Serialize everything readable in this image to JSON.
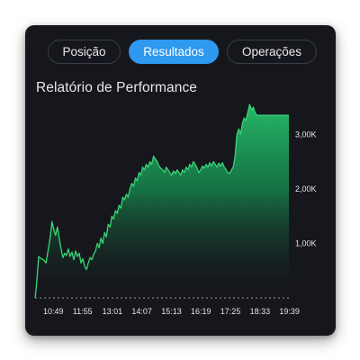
{
  "tabs": [
    {
      "label": "Posição",
      "active": false
    },
    {
      "label": "Resultados",
      "active": true
    },
    {
      "label": "Operações",
      "active": false
    }
  ],
  "title": "Relatório de Performance",
  "colors": {
    "background": "#16171d",
    "accent": "#2f98ef",
    "line": "#38d677",
    "fill": "#1f9e58"
  },
  "chart_data": {
    "type": "area",
    "x_tick_labels": [
      "10:49",
      "11:55",
      "13:01",
      "14:07",
      "15:13",
      "16:19",
      "17:25",
      "18:33",
      "19:39"
    ],
    "y_tick_labels": [
      "1,00K",
      "2,00K",
      "3,00K"
    ],
    "y_ticks": [
      1000,
      2000,
      3000
    ],
    "ylim": [
      0,
      3600
    ],
    "baseline": 0,
    "x_range": [
      0,
      420
    ],
    "points": [
      [
        0,
        0
      ],
      [
        2,
        180
      ],
      [
        6,
        760
      ],
      [
        10,
        720
      ],
      [
        14,
        700
      ],
      [
        18,
        640
      ],
      [
        22,
        900
      ],
      [
        25,
        1120
      ],
      [
        28,
        1400
      ],
      [
        31,
        1250
      ],
      [
        34,
        1150
      ],
      [
        37,
        1300
      ],
      [
        40,
        1080
      ],
      [
        43,
        900
      ],
      [
        46,
        740
      ],
      [
        49,
        820
      ],
      [
        52,
        780
      ],
      [
        55,
        900
      ],
      [
        58,
        760
      ],
      [
        61,
        840
      ],
      [
        64,
        700
      ],
      [
        67,
        860
      ],
      [
        70,
        760
      ],
      [
        73,
        820
      ],
      [
        76,
        640
      ],
      [
        79,
        720
      ],
      [
        82,
        580
      ],
      [
        85,
        520
      ],
      [
        88,
        640
      ],
      [
        91,
        740
      ],
      [
        94,
        700
      ],
      [
        97,
        800
      ],
      [
        100,
        860
      ],
      [
        103,
        1000
      ],
      [
        106,
        920
      ],
      [
        109,
        1100
      ],
      [
        112,
        1000
      ],
      [
        115,
        1200
      ],
      [
        118,
        1120
      ],
      [
        121,
        1350
      ],
      [
        124,
        1300
      ],
      [
        127,
        1500
      ],
      [
        130,
        1450
      ],
      [
        133,
        1600
      ],
      [
        136,
        1550
      ],
      [
        139,
        1700
      ],
      [
        142,
        1650
      ],
      [
        145,
        1850
      ],
      [
        148,
        1800
      ],
      [
        151,
        1900
      ],
      [
        154,
        1850
      ],
      [
        157,
        2000
      ],
      [
        160,
        2100
      ],
      [
        163,
        2050
      ],
      [
        166,
        2200
      ],
      [
        169,
        2150
      ],
      [
        172,
        2300
      ],
      [
        175,
        2250
      ],
      [
        178,
        2400
      ],
      [
        181,
        2350
      ],
      [
        184,
        2450
      ],
      [
        187,
        2400
      ],
      [
        190,
        2500
      ],
      [
        193,
        2450
      ],
      [
        196,
        2600
      ],
      [
        199,
        2550
      ],
      [
        202,
        2500
      ],
      [
        205,
        2420
      ],
      [
        208,
        2380
      ],
      [
        211,
        2350
      ],
      [
        214,
        2300
      ],
      [
        217,
        2400
      ],
      [
        220,
        2350
      ],
      [
        223,
        2300
      ],
      [
        226,
        2250
      ],
      [
        229,
        2330
      ],
      [
        232,
        2280
      ],
      [
        235,
        2350
      ],
      [
        238,
        2300
      ],
      [
        241,
        2250
      ],
      [
        244,
        2350
      ],
      [
        247,
        2300
      ],
      [
        250,
        2400
      ],
      [
        253,
        2350
      ],
      [
        256,
        2450
      ],
      [
        259,
        2400
      ],
      [
        262,
        2500
      ],
      [
        265,
        2450
      ],
      [
        268,
        2380
      ],
      [
        271,
        2300
      ],
      [
        274,
        2350
      ],
      [
        277,
        2420
      ],
      [
        280,
        2380
      ],
      [
        283,
        2450
      ],
      [
        286,
        2400
      ],
      [
        289,
        2480
      ],
      [
        292,
        2420
      ],
      [
        295,
        2500
      ],
      [
        298,
        2450
      ],
      [
        301,
        2400
      ],
      [
        304,
        2470
      ],
      [
        307,
        2420
      ],
      [
        310,
        2480
      ],
      [
        313,
        2400
      ],
      [
        316,
        2350
      ],
      [
        319,
        2300
      ],
      [
        322,
        2280
      ],
      [
        325,
        2350
      ],
      [
        328,
        2400
      ],
      [
        331,
        2600
      ],
      [
        334,
        3000
      ],
      [
        337,
        3100
      ],
      [
        340,
        3000
      ],
      [
        343,
        3200
      ],
      [
        346,
        3300
      ],
      [
        349,
        3250
      ],
      [
        352,
        3400
      ],
      [
        355,
        3550
      ],
      [
        358,
        3450
      ],
      [
        361,
        3500
      ],
      [
        364,
        3400
      ],
      [
        367,
        3350
      ],
      [
        370,
        3350
      ],
      [
        373,
        3350
      ],
      [
        380,
        3350
      ],
      [
        390,
        3350
      ],
      [
        400,
        3350
      ],
      [
        410,
        3350
      ],
      [
        420,
        3350
      ]
    ]
  }
}
